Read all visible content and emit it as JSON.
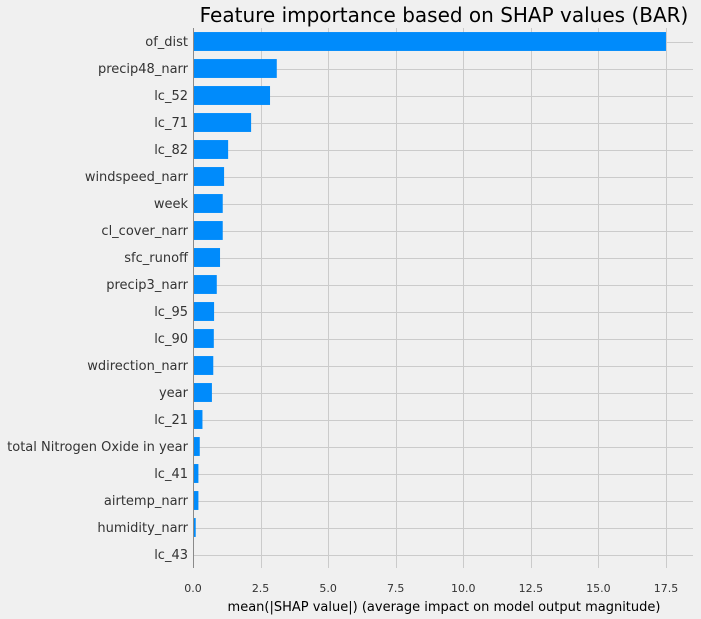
{
  "chart_data": {
    "type": "bar",
    "orientation": "horizontal",
    "title": "Feature importance based on SHAP values (BAR)",
    "xlabel": "mean(|SHAP value|) (average impact on model output magnitude)",
    "ylabel": "",
    "xlim": [
      0,
      18.5
    ],
    "xticks": [
      "0.0",
      "2.5",
      "5.0",
      "7.5",
      "10.0",
      "12.5",
      "15.0",
      "17.5"
    ],
    "xtick_values": [
      0,
      2.5,
      5,
      7.5,
      10,
      12.5,
      15,
      17.5
    ],
    "grid": true,
    "bar_color": "#008bfb",
    "background": "#f0f0f0",
    "categories": [
      "of_dist",
      "precip48_narr",
      "lc_52",
      "lc_71",
      "lc_82",
      "windspeed_narr",
      "week",
      "cl_cover_narr",
      "sfc_runoff",
      "precip3_narr",
      "lc_95",
      "lc_90",
      "wdirection_narr",
      "year",
      "lc_21",
      "total Nitrogen Oxide in year",
      "lc_41",
      "airtemp_narr",
      "humidity_narr",
      "lc_43"
    ],
    "values": [
      17.5,
      3.1,
      2.85,
      2.15,
      1.3,
      1.15,
      1.1,
      1.1,
      1.0,
      0.88,
      0.78,
      0.77,
      0.75,
      0.7,
      0.35,
      0.25,
      0.2,
      0.2,
      0.1,
      0.03
    ]
  }
}
